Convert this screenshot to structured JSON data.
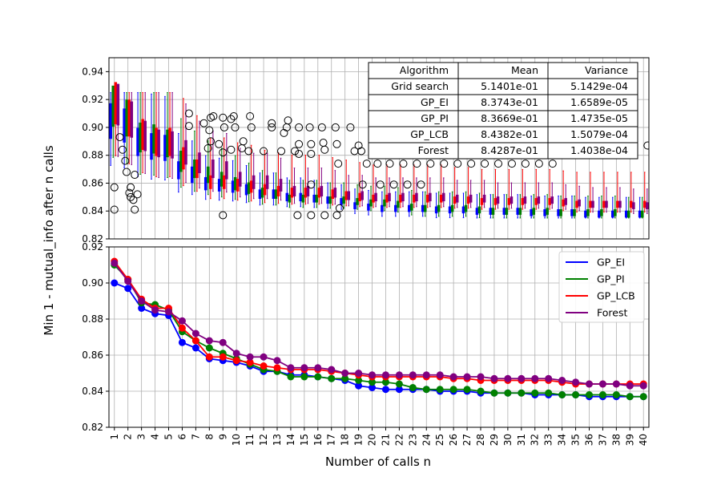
{
  "chart_data": [
    {
      "type": "boxplot",
      "panel": "top",
      "ylabel": "Min 1 - mutual_info after n calls",
      "ylim": [
        0.82,
        0.95
      ],
      "yticks": [
        "0.82",
        "0.84",
        "0.86",
        "0.88",
        "0.90",
        "0.92",
        "0.94"
      ],
      "x": [
        1,
        2,
        3,
        4,
        5,
        6,
        7,
        8,
        9,
        10,
        11,
        12,
        13,
        14,
        15,
        16,
        17,
        18,
        19,
        20,
        21,
        22,
        23,
        24,
        25,
        26,
        27,
        28,
        29,
        30,
        31,
        32,
        33,
        34,
        35,
        36,
        37,
        38,
        39,
        40
      ],
      "series": [
        {
          "name": "GP_EI",
          "color": "#0000ff"
        },
        {
          "name": "GP_PI",
          "color": "#008000"
        },
        {
          "name": "GP_LCB",
          "color": "#ff0000"
        },
        {
          "name": "Forest",
          "color": "#800080"
        }
      ],
      "table": {
        "headers": [
          "Algorithm",
          "Mean",
          "Variance"
        ],
        "rows": [
          [
            "Grid search",
            "5.1401e-01",
            "5.1429e-04"
          ],
          [
            "GP_EI",
            "8.3743e-01",
            "1.6589e-05"
          ],
          [
            "GP_PI",
            "8.3669e-01",
            "1.4735e-05"
          ],
          [
            "GP_LCB",
            "8.4382e-01",
            "1.5079e-04"
          ],
          [
            "Forest",
            "8.4287e-01",
            "1.4038e-04"
          ]
        ]
      }
    },
    {
      "type": "line",
      "panel": "bottom",
      "xlabel": "Number of calls n",
      "ylim": [
        0.82,
        0.92
      ],
      "yticks": [
        "0.82",
        "0.84",
        "0.86",
        "0.88",
        "0.90",
        "0.92"
      ],
      "x": [
        1,
        2,
        3,
        4,
        5,
        6,
        7,
        8,
        9,
        10,
        11,
        12,
        13,
        14,
        15,
        16,
        17,
        18,
        19,
        20,
        21,
        22,
        23,
        24,
        25,
        26,
        27,
        28,
        29,
        30,
        31,
        32,
        33,
        34,
        35,
        36,
        37,
        38,
        39,
        40
      ],
      "legend_position": "top-right",
      "series": [
        {
          "name": "GP_EI",
          "color": "#0000ff",
          "values": [
            0.9,
            0.897,
            0.886,
            0.883,
            0.882,
            0.867,
            0.864,
            0.858,
            0.857,
            0.856,
            0.854,
            0.851,
            0.851,
            0.849,
            0.849,
            0.848,
            0.847,
            0.846,
            0.843,
            0.842,
            0.841,
            0.841,
            0.841,
            0.841,
            0.84,
            0.84,
            0.84,
            0.839,
            0.839,
            0.839,
            0.839,
            0.838,
            0.838,
            0.838,
            0.838,
            0.837,
            0.837,
            0.837,
            0.837,
            0.837
          ]
        },
        {
          "name": "GP_PI",
          "color": "#008000",
          "values": [
            0.91,
            0.902,
            0.889,
            0.888,
            0.885,
            0.873,
            0.868,
            0.864,
            0.861,
            0.858,
            0.855,
            0.852,
            0.851,
            0.848,
            0.848,
            0.848,
            0.847,
            0.847,
            0.846,
            0.845,
            0.845,
            0.844,
            0.842,
            0.841,
            0.841,
            0.841,
            0.841,
            0.84,
            0.839,
            0.839,
            0.839,
            0.839,
            0.839,
            0.838,
            0.838,
            0.838,
            0.838,
            0.838,
            0.837,
            0.837
          ]
        },
        {
          "name": "GP_LCB",
          "color": "#ff0000",
          "values": [
            0.912,
            0.902,
            0.891,
            0.886,
            0.886,
            0.875,
            0.868,
            0.859,
            0.859,
            0.857,
            0.856,
            0.854,
            0.853,
            0.852,
            0.852,
            0.852,
            0.851,
            0.85,
            0.849,
            0.848,
            0.848,
            0.848,
            0.848,
            0.848,
            0.848,
            0.847,
            0.847,
            0.846,
            0.846,
            0.846,
            0.846,
            0.846,
            0.846,
            0.845,
            0.844,
            0.844,
            0.844,
            0.844,
            0.844,
            0.844
          ]
        },
        {
          "name": "Forest",
          "color": "#800080",
          "values": [
            0.911,
            0.901,
            0.89,
            0.885,
            0.884,
            0.879,
            0.872,
            0.868,
            0.867,
            0.861,
            0.859,
            0.859,
            0.857,
            0.853,
            0.853,
            0.853,
            0.852,
            0.85,
            0.85,
            0.849,
            0.849,
            0.849,
            0.849,
            0.849,
            0.849,
            0.848,
            0.848,
            0.848,
            0.847,
            0.847,
            0.847,
            0.847,
            0.847,
            0.846,
            0.845,
            0.844,
            0.844,
            0.844,
            0.843,
            0.843
          ]
        }
      ]
    }
  ]
}
